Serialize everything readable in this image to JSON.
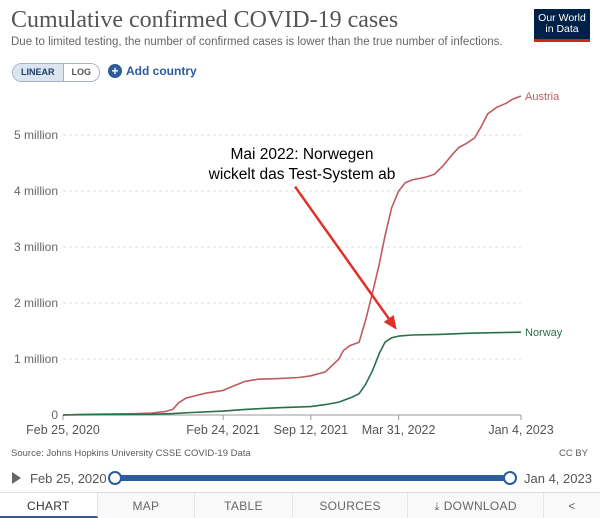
{
  "header": {
    "title": "Cumulative confirmed COVID-19 cases",
    "subtitle": "Due to limited testing, the number of confirmed cases is lower than the true number of infections.",
    "logo_line1": "Our World",
    "logo_line2": "in Data"
  },
  "controls": {
    "linear_label": "LINEAR",
    "log_label": "LOG",
    "active_scale": "linear",
    "add_country_label": "Add country",
    "add_country_icon": "plus-circle-icon"
  },
  "chart_data": {
    "type": "line",
    "ylim": [
      0,
      5700000
    ],
    "y_ticks": [
      0,
      1000000,
      2000000,
      3000000,
      4000000,
      5000000
    ],
    "y_tick_labels": [
      "0",
      "1 million",
      "2 million",
      "3 million",
      "4 million",
      "5 million"
    ],
    "x_range": [
      "2020-02-25",
      "2023-01-04"
    ],
    "x_ticks": [
      "2020-02-25",
      "2021-02-24",
      "2021-09-12",
      "2022-03-31",
      "2023-01-04"
    ],
    "x_tick_labels": [
      "Feb 25, 2020",
      "Feb 24, 2021",
      "Sep 12, 2021",
      "Mar 31, 2022",
      "Jan 4, 2023"
    ],
    "legend_position": "end-of-line",
    "gridlines": "horizontal-dashed",
    "series": [
      {
        "name": "Austria",
        "color": "#be5b62",
        "points": [
          [
            "2020-02-25",
            0
          ],
          [
            "2020-04-01",
            10000
          ],
          [
            "2020-06-01",
            17000
          ],
          [
            "2020-08-01",
            21000
          ],
          [
            "2020-09-15",
            35000
          ],
          [
            "2020-10-15",
            60000
          ],
          [
            "2020-11-01",
            100000
          ],
          [
            "2020-11-15",
            220000
          ],
          [
            "2020-12-01",
            300000
          ],
          [
            "2020-12-20",
            340000
          ],
          [
            "2021-01-15",
            390000
          ],
          [
            "2021-02-24",
            440000
          ],
          [
            "2021-03-20",
            520000
          ],
          [
            "2021-04-15",
            600000
          ],
          [
            "2021-05-15",
            640000
          ],
          [
            "2021-07-01",
            650000
          ],
          [
            "2021-08-15",
            670000
          ],
          [
            "2021-09-12",
            700000
          ],
          [
            "2021-10-15",
            770000
          ],
          [
            "2021-11-15",
            1000000
          ],
          [
            "2021-11-25",
            1150000
          ],
          [
            "2021-12-10",
            1240000
          ],
          [
            "2021-12-31",
            1300000
          ],
          [
            "2022-01-15",
            1700000
          ],
          [
            "2022-01-31",
            2200000
          ],
          [
            "2022-02-15",
            2700000
          ],
          [
            "2022-02-28",
            3200000
          ],
          [
            "2022-03-15",
            3700000
          ],
          [
            "2022-03-31",
            4000000
          ],
          [
            "2022-04-15",
            4150000
          ],
          [
            "2022-05-01",
            4200000
          ],
          [
            "2022-06-01",
            4250000
          ],
          [
            "2022-06-20",
            4300000
          ],
          [
            "2022-07-10",
            4450000
          ],
          [
            "2022-07-31",
            4650000
          ],
          [
            "2022-08-15",
            4780000
          ],
          [
            "2022-09-01",
            4850000
          ],
          [
            "2022-09-20",
            4950000
          ],
          [
            "2022-10-05",
            5150000
          ],
          [
            "2022-10-20",
            5380000
          ],
          [
            "2022-11-10",
            5500000
          ],
          [
            "2022-12-01",
            5570000
          ],
          [
            "2022-12-15",
            5640000
          ],
          [
            "2023-01-04",
            5700000
          ]
        ]
      },
      {
        "name": "Norway",
        "color": "#286f4c",
        "points": [
          [
            "2020-02-25",
            0
          ],
          [
            "2020-06-01",
            9000
          ],
          [
            "2020-09-15",
            13000
          ],
          [
            "2020-11-01",
            25000
          ],
          [
            "2020-12-15",
            45000
          ],
          [
            "2021-02-24",
            70000
          ],
          [
            "2021-04-15",
            100000
          ],
          [
            "2021-07-01",
            130000
          ],
          [
            "2021-09-12",
            150000
          ],
          [
            "2021-10-15",
            185000
          ],
          [
            "2021-11-15",
            230000
          ],
          [
            "2021-12-15",
            320000
          ],
          [
            "2021-12-31",
            380000
          ],
          [
            "2022-01-15",
            550000
          ],
          [
            "2022-01-31",
            800000
          ],
          [
            "2022-02-15",
            1100000
          ],
          [
            "2022-02-28",
            1300000
          ],
          [
            "2022-03-15",
            1380000
          ],
          [
            "2022-03-31",
            1410000
          ],
          [
            "2022-05-01",
            1430000
          ],
          [
            "2022-07-01",
            1440000
          ],
          [
            "2022-09-01",
            1460000
          ],
          [
            "2022-11-01",
            1470000
          ],
          [
            "2023-01-04",
            1480000
          ]
        ]
      }
    ],
    "annotation": {
      "line1": "Mai 2022: Norwegen",
      "line2": "wickelt das Test-System ab",
      "color": "#e0302a",
      "arrow_from": [
        "2021-08-07",
        4080000
      ],
      "arrow_to": [
        "2022-03-27",
        1520000
      ]
    }
  },
  "footer": {
    "source": "Source: Johns Hopkins University CSSE COVID-19 Data",
    "license": "CC BY"
  },
  "timeline": {
    "start_label": "Feb 25, 2020",
    "end_label": "Jan 4, 2023",
    "play_icon": "play-icon"
  },
  "tabs": {
    "chart": "CHART",
    "map": "MAP",
    "table": "TABLE",
    "sources": "SOURCES",
    "download": "DOWNLOAD",
    "share_icon": "share-icon"
  }
}
